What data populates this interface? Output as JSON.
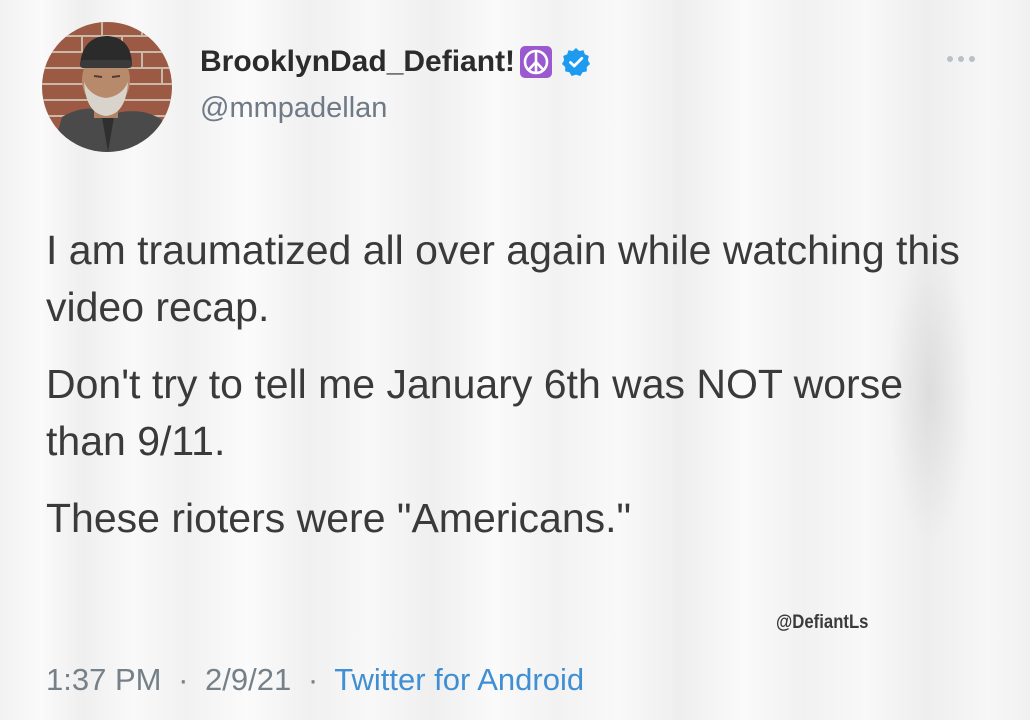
{
  "author": {
    "display_name": "BrooklynDad_Defiant!",
    "handle": "@mmpadellan",
    "badges": [
      "peace-symbol-icon",
      "verified-icon"
    ]
  },
  "tweet": {
    "paragraphs": [
      "I am traumatized all over again while watching this video recap.",
      "Don't try to tell me January 6th was NOT worse than 9/11.",
      "These rioters were \"Americans.\""
    ]
  },
  "watermark": "@DefiantLs",
  "meta": {
    "time": "1:37 PM",
    "separator": "·",
    "date": "2/9/21",
    "source": "Twitter for Android"
  },
  "colors": {
    "name": "#2b2b2b",
    "handle": "#6e7a86",
    "body": "#3a3a3a",
    "link": "#3f8fd4",
    "verified": "#1d9bf0",
    "peace_badge": "#9b59d0"
  }
}
